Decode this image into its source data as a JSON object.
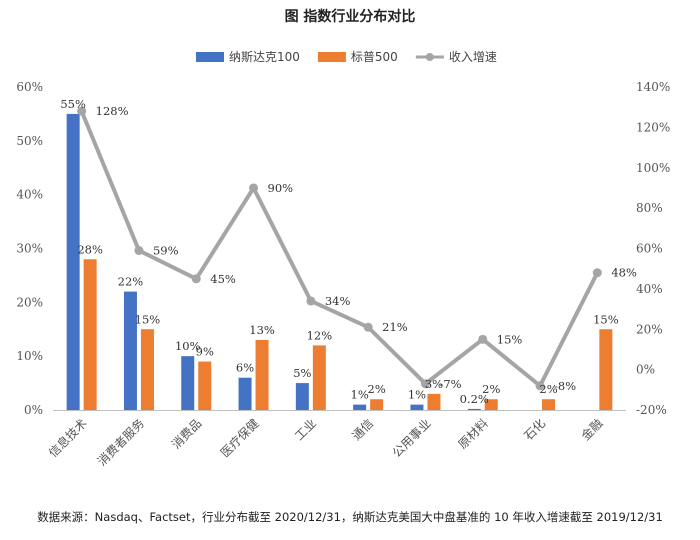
{
  "chart_data": {
    "type": "bar",
    "title": "图  指数行业分布对比",
    "categories": [
      "信息技术",
      "消费者服务",
      "消费品",
      "医疗保健",
      "工业",
      "通信",
      "公用事业",
      "原材料",
      "石化",
      "金融"
    ],
    "series": [
      {
        "name": "纳斯达克100",
        "type": "bar",
        "axis": "left",
        "color": "#4472C4",
        "values": [
          55,
          22,
          10,
          6,
          5,
          1,
          1,
          0.2,
          0,
          0
        ],
        "labels": [
          "55%",
          "22%",
          "10%",
          "6%",
          "5%",
          "1%",
          "1%",
          "0.2%",
          "",
          ""
        ]
      },
      {
        "name": "标普500",
        "type": "bar",
        "axis": "left",
        "color": "#ED7D31",
        "values": [
          28,
          15,
          9,
          13,
          12,
          2,
          3,
          2,
          2,
          15
        ],
        "labels": [
          "28%",
          "15%",
          "9%",
          "13%",
          "12%",
          "2%",
          "3%",
          "2%",
          "2%",
          "15%"
        ]
      },
      {
        "name": "收入增速",
        "type": "line",
        "axis": "right",
        "color": "#A5A5A5",
        "values": [
          128,
          59,
          45,
          90,
          34,
          21,
          -7,
          15,
          -8,
          48
        ],
        "labels": [
          "128%",
          "59%",
          "45%",
          "90%",
          "34%",
          "21%",
          "-7%",
          "15%",
          "-8%",
          "48%"
        ]
      }
    ],
    "y_left": {
      "min": 0,
      "max": 60,
      "ticks": [
        "0%",
        "10%",
        "20%",
        "30%",
        "40%",
        "50%",
        "60%"
      ]
    },
    "y_right": {
      "min": -20,
      "max": 140,
      "ticks": [
        "-20%",
        "0%",
        "20%",
        "40%",
        "60%",
        "80%",
        "100%",
        "120%",
        "140%"
      ]
    },
    "legend_position": "top",
    "grid": false
  },
  "source_note": "数据来源：Nasdaq、Factset，行业分布截至 2020/12/31，纳斯达克美国大中盘基准的 10 年收入增速截至 2019/12/31"
}
